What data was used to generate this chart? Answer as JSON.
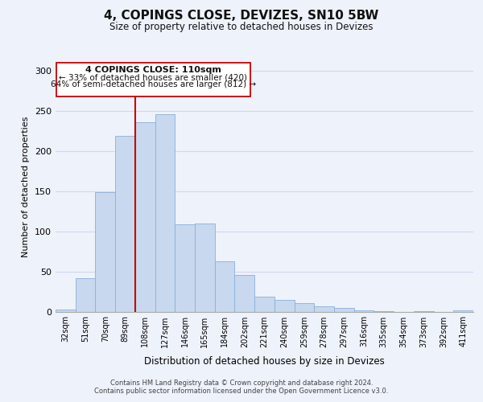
{
  "title": "4, COPINGS CLOSE, DEVIZES, SN10 5BW",
  "subtitle": "Size of property relative to detached houses in Devizes",
  "xlabel": "Distribution of detached houses by size in Devizes",
  "ylabel": "Number of detached properties",
  "bar_labels": [
    "32sqm",
    "51sqm",
    "70sqm",
    "89sqm",
    "108sqm",
    "127sqm",
    "146sqm",
    "165sqm",
    "184sqm",
    "202sqm",
    "221sqm",
    "240sqm",
    "259sqm",
    "278sqm",
    "297sqm",
    "316sqm",
    "335sqm",
    "354sqm",
    "373sqm",
    "392sqm",
    "411sqm"
  ],
  "bar_values": [
    3,
    42,
    149,
    219,
    236,
    246,
    109,
    110,
    63,
    46,
    19,
    15,
    11,
    7,
    5,
    2,
    1,
    0,
    1,
    0,
    2
  ],
  "bar_color": "#c8d8ee",
  "bar_edge_color": "#8ab0d8",
  "highlight_index": 4,
  "highlight_line_color": "#cc0000",
  "ylim": [
    0,
    310
  ],
  "yticks": [
    0,
    50,
    100,
    150,
    200,
    250,
    300
  ],
  "annotation_title": "4 COPINGS CLOSE: 110sqm",
  "annotation_line1": "← 33% of detached houses are smaller (420)",
  "annotation_line2": "64% of semi-detached houses are larger (812) →",
  "footer_line1": "Contains HM Land Registry data © Crown copyright and database right 2024.",
  "footer_line2": "Contains public sector information licensed under the Open Government Licence v3.0.",
  "background_color": "#eef2fb",
  "grid_color": "#d0d8ef"
}
